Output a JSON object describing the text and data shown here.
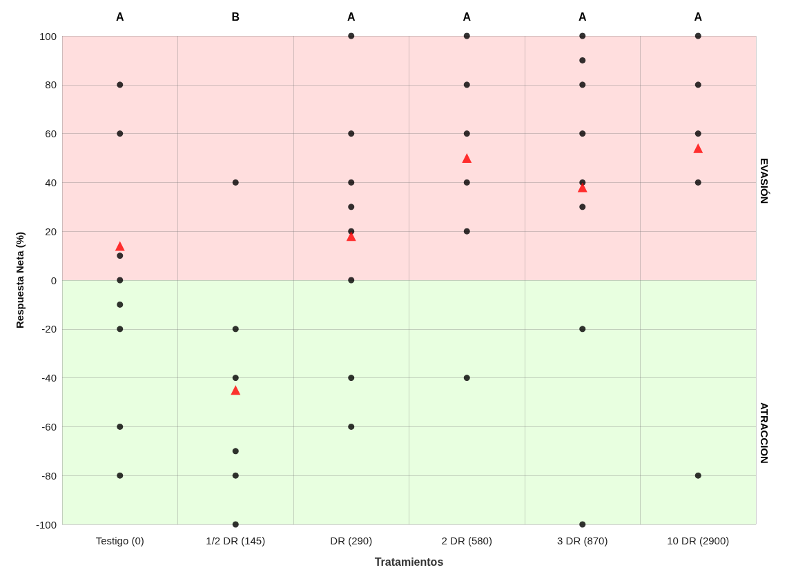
{
  "chart_data": {
    "type": "scatter",
    "xlabel": "Tratamientos",
    "ylabel": "Respuesta Neta (%)",
    "categories": [
      "Testigo (0)",
      "1/2 DR (145)",
      "DR (290)",
      "2 DR (580)",
      "3 DR (870)",
      "10 DR (2900)"
    ],
    "series": [
      {
        "color": "#000000",
        "marker": "circle",
        "x": [
          "Testigo (0)",
          "Testigo (0)",
          "Testigo (0)",
          "Testigo (0)",
          "Testigo (0)",
          "Testigo (0)",
          "Testigo (0)",
          "Testigo (0)",
          "1/2 DR (145)",
          "1/2 DR (145)",
          "1/2 DR (145)",
          "1/2 DR (145)",
          "1/2 DR (145)",
          "1/2 DR (145)",
          "DR (290)",
          "DR (290)",
          "DR (290)",
          "DR (290)",
          "DR (290)",
          "DR (290)",
          "DR (290)",
          "DR (290)",
          "2 DR (580)",
          "2 DR (580)",
          "2 DR (580)",
          "2 DR (580)",
          "2 DR (580)",
          "2 DR (580)",
          "3 DR (870)",
          "3 DR (870)",
          "3 DR (870)",
          "3 DR (870)",
          "3 DR (870)",
          "3 DR (870)",
          "3 DR (870)",
          "3 DR (870)",
          "10 DR (2900)",
          "10 DR (2900)",
          "10 DR (2900)",
          "10 DR (2900)",
          "10 DR (2900)"
        ],
        "values": [
          80,
          60,
          10,
          0,
          -10,
          -20,
          -60,
          -80,
          40,
          -20,
          -40,
          -70,
          -80,
          -100,
          100,
          60,
          40,
          30,
          20,
          0,
          -40,
          -60,
          100,
          80,
          60,
          40,
          20,
          -40,
          100,
          90,
          80,
          60,
          40,
          30,
          -20,
          -100,
          100,
          80,
          60,
          40,
          -80
        ]
      },
      {
        "color": "#ff0000",
        "marker": "triangle",
        "x": [
          "Testigo (0)",
          "1/2 DR (145)",
          "DR (290)",
          "2 DR (580)",
          "3 DR (870)",
          "10 DR (2900)"
        ],
        "values": [
          14,
          -45,
          18,
          50,
          38,
          54
        ]
      }
    ],
    "ylim": [
      -100,
      100
    ],
    "yticks": [
      -100,
      -80,
      -60,
      -40,
      -20,
      0,
      20,
      40,
      60,
      80,
      100
    ],
    "grid": true,
    "bands": [
      {
        "axis": "y",
        "from": 0,
        "to": 100,
        "label": "EVASIÓN",
        "color": "#ffdede"
      },
      {
        "axis": "y",
        "from": -100,
        "to": 0,
        "label": "ATRACCION",
        "color": "#e8ffe0"
      }
    ],
    "annotations": [
      "A",
      "B",
      "A",
      "A",
      "A",
      "A"
    ]
  }
}
